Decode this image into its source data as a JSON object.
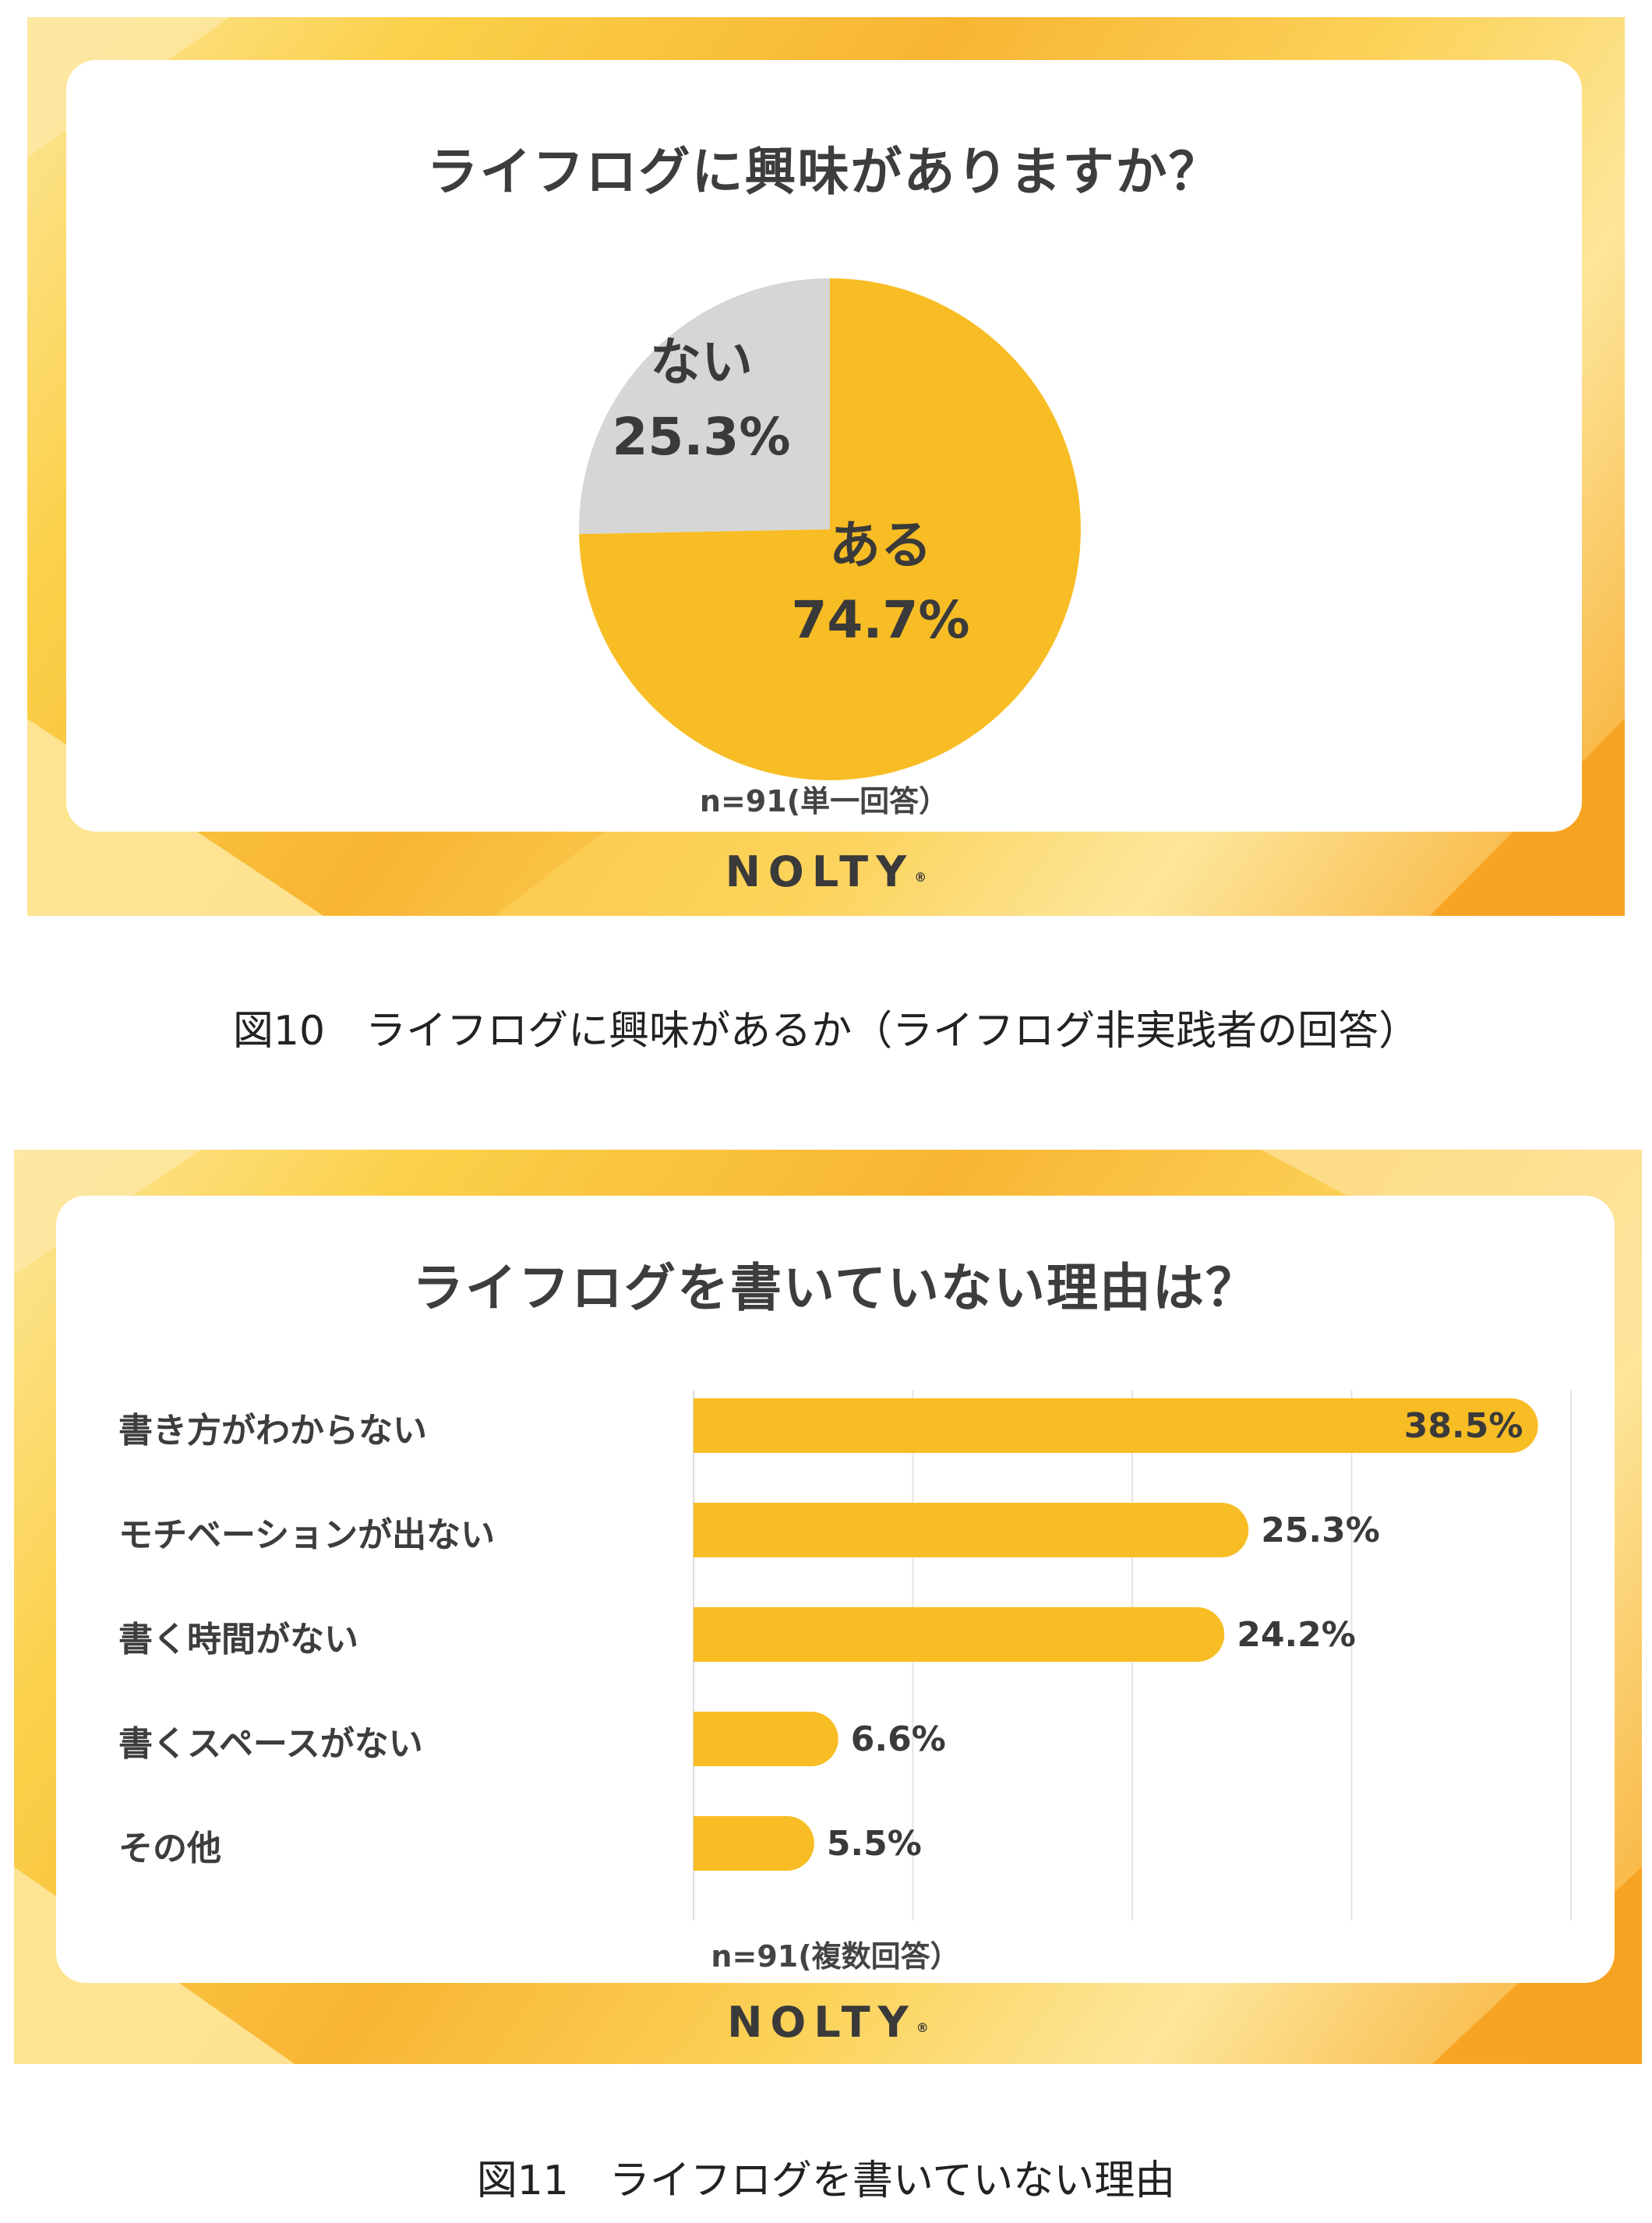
{
  "chart_data": [
    {
      "type": "pie",
      "title": "ライフログに興味がありますか？",
      "note": "n=91(単一回答）",
      "brand": "NOLTY",
      "brand_mark": "®",
      "caption": "図10　ライフログに興味があるか（ライフログ非実践者の回答）",
      "slices": [
        {
          "label": "ある",
          "value": 74.7,
          "value_label": "74.7%",
          "color": "#f8bd24"
        },
        {
          "label": "ない",
          "value": 25.3,
          "value_label": "25.3%",
          "color": "#d6d6d6"
        }
      ]
    },
    {
      "type": "bar",
      "orientation": "horizontal",
      "title": "ライフログを書いていない理由は？",
      "note": "n=91(複数回答）",
      "brand": "NOLTY",
      "brand_mark": "®",
      "caption": "図11　ライフログを書いていない理由",
      "categories": [
        "書き方がわからない",
        "モチベーションが出ない",
        "書く時間がない",
        "書くスペースがない",
        "その他"
      ],
      "values": [
        38.5,
        25.3,
        24.2,
        6.6,
        5.5
      ],
      "value_labels": [
        "38.5%",
        "25.3%",
        "24.2%",
        "6.6%",
        "5.5%"
      ],
      "xlim": [
        0,
        40
      ],
      "grid": true,
      "bar_color": "#f8bd24"
    }
  ]
}
